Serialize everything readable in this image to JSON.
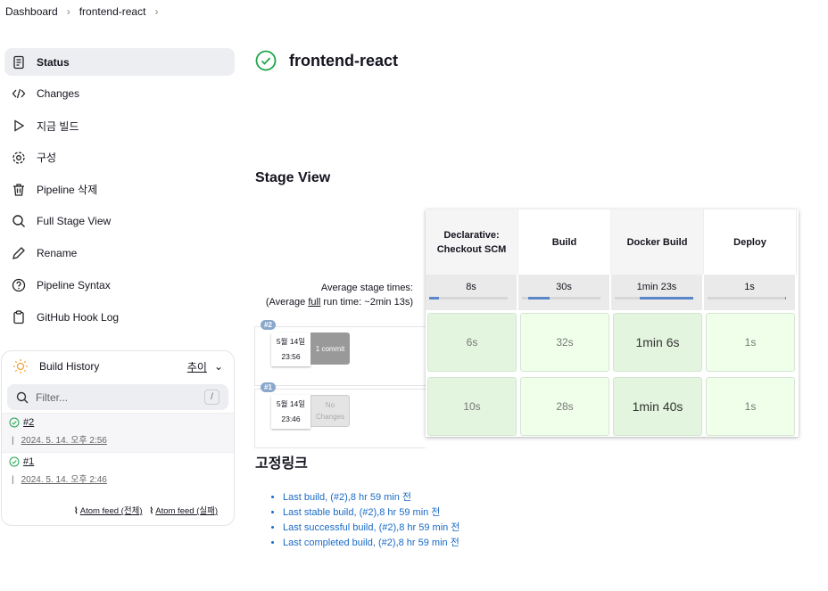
{
  "breadcrumb": [
    "Dashboard",
    "frontend-react"
  ],
  "sidebar": {
    "items": [
      {
        "label": "Status",
        "icon": "document-icon"
      },
      {
        "label": "Changes",
        "icon": "code-icon"
      },
      {
        "label": "지금 빌드",
        "icon": "play-icon"
      },
      {
        "label": "구성",
        "icon": "gear-icon"
      },
      {
        "label": "Pipeline 삭제",
        "icon": "trash-icon"
      },
      {
        "label": "Full Stage View",
        "icon": "search-icon"
      },
      {
        "label": "Rename",
        "icon": "pencil-icon"
      },
      {
        "label": "Pipeline Syntax",
        "icon": "help-icon"
      },
      {
        "label": "GitHub Hook Log",
        "icon": "clipboard-icon"
      }
    ]
  },
  "build_history": {
    "title": "Build History",
    "trend": "추이",
    "filter_placeholder": "Filter...",
    "shortcut": "/",
    "builds": [
      {
        "number": "#2",
        "date": "2024. 5. 14. 오후 2:56",
        "status": "success"
      },
      {
        "number": "#1",
        "date": "2024. 5. 14. 오후 2:46",
        "status": "success"
      }
    ],
    "feeds": [
      "Atom feed (전체)",
      "Atom feed (실패)"
    ]
  },
  "main": {
    "title": "frontend-react",
    "stage_view_title": "Stage View",
    "permalinks_title": "고정링크",
    "permalinks": [
      "Last build, (#2),8 hr 59 min 전",
      "Last stable build, (#2),8 hr 59 min 전",
      "Last successful build, (#2),8 hr 59 min 전",
      "Last completed build, (#2),8 hr 59 min 전"
    ]
  },
  "stage_view": {
    "avg_label": "Average stage times:",
    "avg_full_pre": "(Average ",
    "avg_full_link": "full",
    "avg_full_post": " run time: ~2min 13s)",
    "stages": [
      {
        "name": "Declarative: Checkout SCM",
        "avg": "8s",
        "bar_start": 0,
        "bar_fraction": 0.12
      },
      {
        "name": "Build",
        "avg": "30s",
        "bar_start": 0.08,
        "bar_fraction": 0.27
      },
      {
        "name": "Docker Build",
        "avg": "1min 23s",
        "bar_start": 0.32,
        "bar_fraction": 0.68
      },
      {
        "name": "Deploy",
        "avg": "1s",
        "bar_start": 0.99,
        "bar_fraction": 0.01
      }
    ],
    "runs": [
      {
        "badge": "#2",
        "date": "5월 14일",
        "time": "23:56",
        "changes": "1 commit",
        "times": [
          "6s",
          "32s",
          "1min 6s",
          "1s"
        ]
      },
      {
        "badge": "#1",
        "date": "5월 14일",
        "time": "23:46",
        "changes": "No Changes",
        "times": [
          "10s",
          "28s",
          "1min 40s",
          "1s"
        ]
      }
    ]
  },
  "colors": {
    "success": "#1ea64b",
    "link": "#1a6ac6",
    "stage_bar": "#5b86c9"
  }
}
